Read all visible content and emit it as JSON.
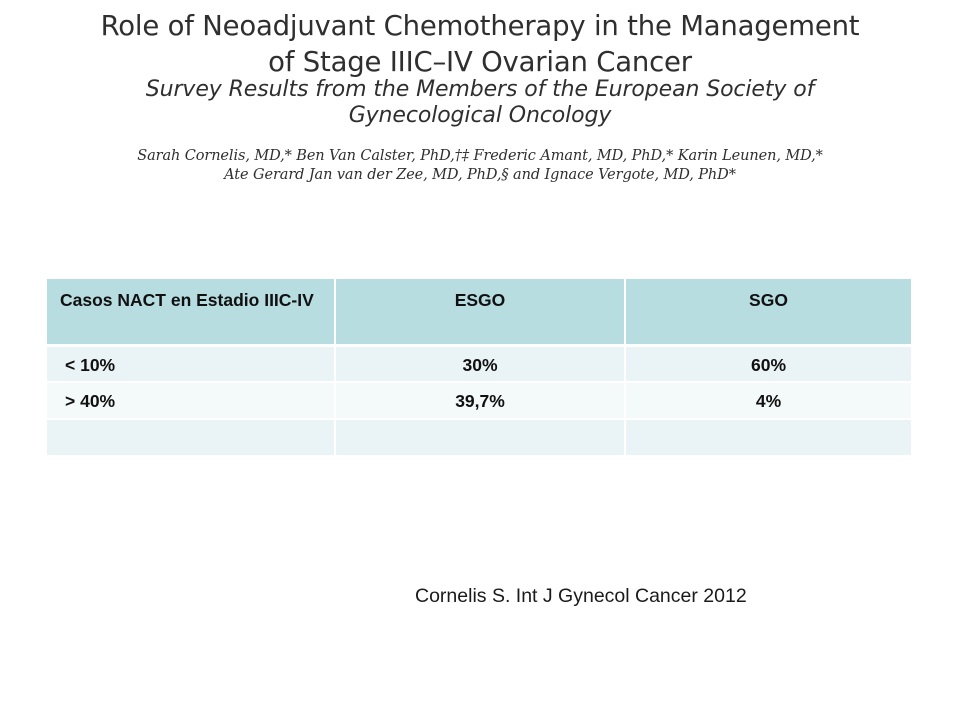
{
  "header": {
    "title_lines": [
      "Role of Neoadjuvant Chemotherapy in the Management",
      "of Stage IIIC–IV Ovarian Cancer"
    ],
    "subtitle_lines": [
      "Survey Results from the Members of the European Society of",
      "Gynecological Oncology"
    ],
    "author_lines": [
      "Sarah Cornelis, MD,* Ben Van Calster, PhD,†‡ Frederic Amant, MD, PhD,* Karin Leunen, MD,*",
      "Ate Gerard Jan van der Zee, MD, PhD,§ and Ignace Vergote, MD, PhD*"
    ]
  },
  "table": {
    "headers": [
      "Casos NACT en Estadio IIIC-IV",
      "ESGO",
      "SGO"
    ],
    "rows": [
      [
        "< 10%",
        "30%",
        "60%"
      ],
      [
        "> 40%",
        "39,7%",
        "4%"
      ],
      [
        "",
        "",
        ""
      ]
    ]
  },
  "citation": "Cornelis S. Int J Gynecol Cancer 2012",
  "colors": {
    "header_fill": "#b7dde1",
    "row_fill_light": "#eaf4f6",
    "row_fill_lighter": "#f4f9fa",
    "heading_text": "#2f2f2f"
  }
}
